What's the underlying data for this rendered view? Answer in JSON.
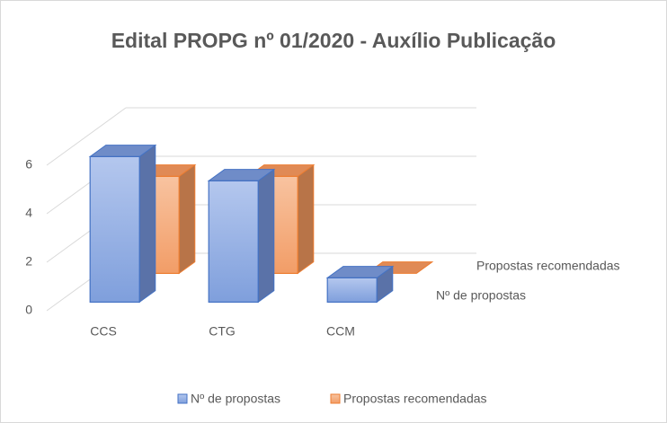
{
  "chart_data": {
    "type": "bar3d",
    "title": "Edital PROPG nº 01/2020 - Auxílio Publicação",
    "categories": [
      "CCS",
      "CTG",
      "CCM"
    ],
    "series": [
      {
        "name": "Nº de propostas",
        "color": "#8faadc",
        "edge": "#4472c4",
        "values": [
          6,
          5,
          1
        ]
      },
      {
        "name": "Propostas recomendadas",
        "color": "#f4b183",
        "edge": "#ed7d31",
        "values": [
          4,
          4,
          0
        ]
      }
    ],
    "ylim": [
      0,
      6
    ],
    "yticks": [
      0,
      2,
      4,
      6
    ],
    "grid": true,
    "legend": "bottom"
  }
}
